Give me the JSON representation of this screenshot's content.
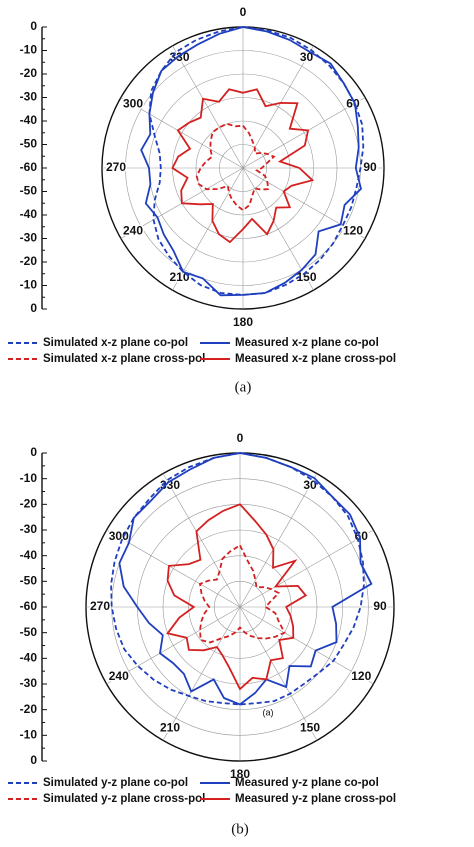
{
  "chart_data": [
    {
      "type": "polar",
      "caption": "(a)",
      "theta": [
        0,
        10,
        20,
        30,
        40,
        50,
        60,
        70,
        80,
        90,
        100,
        110,
        120,
        130,
        140,
        150,
        160,
        170,
        180,
        190,
        200,
        210,
        220,
        230,
        240,
        250,
        260,
        270,
        280,
        290,
        300,
        310,
        320,
        330,
        340,
        350
      ],
      "thetaticks": [
        0,
        30,
        60,
        90,
        120,
        150,
        180,
        210,
        240,
        270,
        300,
        330
      ],
      "rlim": [
        -60,
        0
      ],
      "rticks": [
        -60,
        -50,
        -40,
        -30,
        -20,
        -10,
        0
      ],
      "grid": true,
      "series": [
        {
          "name": "Simulated x-z plane co-pol",
          "color": "#1f3fbf",
          "line_style": "dashed",
          "values": [
            0,
            -0.5,
            -1,
            -2,
            -3,
            -4,
            -5,
            -6,
            -8,
            -10,
            -11,
            -11,
            -11,
            -10,
            -9,
            -8,
            -7,
            -6,
            -6,
            -6,
            -7,
            -9,
            -11,
            -13,
            -16,
            -20,
            -24,
            -25,
            -24,
            -20,
            -14,
            -9,
            -6,
            -3,
            -2,
            -1
          ]
        },
        {
          "name": "Measured x-z plane co-pol",
          "color": "#1f3fbf",
          "line_style": "solid",
          "values": [
            0,
            -1,
            -2,
            -3,
            -2,
            -4,
            -5,
            -8,
            -10,
            -12,
            -9,
            -14,
            -12,
            -18,
            -12,
            -10,
            -8,
            -6,
            -6,
            -5,
            -10,
            -9,
            -14,
            -16,
            -18,
            -16,
            -20,
            -20,
            -16,
            -18,
            -14,
            -10,
            -6,
            -5,
            -4,
            -2
          ]
        },
        {
          "name": "Simulated x-z plane cross-pol",
          "color": "#d42020",
          "line_style": "dashed",
          "values": [
            -42,
            -45,
            -48,
            -50,
            -52,
            -50,
            -48,
            -46,
            -50,
            -52,
            -54,
            -50,
            -48,
            -46,
            -48,
            -50,
            -48,
            -44,
            -42,
            -44,
            -46,
            -48,
            -50,
            -46,
            -42,
            -40,
            -40,
            -42,
            -44,
            -46,
            -44,
            -42,
            -40,
            -40,
            -40,
            -42
          ]
        },
        {
          "name": "Measured x-z  plane cross-pol",
          "color": "#d42020",
          "line_style": "solid",
          "values": [
            -28,
            -26,
            -32,
            -28,
            -24,
            -34,
            -28,
            -32,
            -44,
            -36,
            -30,
            -38,
            -40,
            -34,
            -38,
            -34,
            -30,
            -38,
            -34,
            -28,
            -30,
            -34,
            -40,
            -36,
            -30,
            -32,
            -36,
            -30,
            -32,
            -36,
            -28,
            -30,
            -32,
            -26,
            -30,
            -26
          ]
        }
      ]
    },
    {
      "type": "polar",
      "caption": "(b)",
      "annotation": "(a)",
      "theta": [
        0,
        10,
        20,
        30,
        40,
        50,
        60,
        70,
        80,
        90,
        100,
        110,
        120,
        130,
        140,
        150,
        160,
        170,
        180,
        190,
        200,
        210,
        220,
        230,
        240,
        250,
        260,
        270,
        280,
        290,
        300,
        310,
        320,
        330,
        340,
        350
      ],
      "thetaticks": [
        0,
        30,
        60,
        90,
        120,
        150,
        180,
        210,
        240,
        270,
        300,
        330
      ],
      "rlim": [
        -60,
        0
      ],
      "rticks": [
        -60,
        -50,
        -40,
        -30,
        -20,
        -10,
        0
      ],
      "grid": true,
      "series": [
        {
          "name": "Simulated  y-z plane co-pol",
          "color": "#1f3fbf",
          "line_style": "dashed",
          "values": [
            0,
            -1,
            -2,
            -3,
            -4,
            -5,
            -7,
            -9,
            -11,
            -13,
            -15,
            -17,
            -18,
            -20,
            -21,
            -21,
            -21,
            -22,
            -22,
            -22,
            -21,
            -20,
            -18,
            -16,
            -14,
            -12,
            -11,
            -10,
            -9,
            -8,
            -7,
            -6,
            -5,
            -3,
            -2,
            -1
          ]
        },
        {
          "name": "Measured y-z plane co-pol",
          "color": "#1f3fbf",
          "line_style": "solid",
          "values": [
            0,
            -1,
            -2,
            -2,
            -4,
            -4,
            -6,
            -10,
            -8,
            -24,
            -22,
            -20,
            -26,
            -24,
            -30,
            -24,
            -30,
            -26,
            -22,
            -24,
            -30,
            -22,
            -26,
            -26,
            -24,
            -28,
            -24,
            -20,
            -14,
            -10,
            -10,
            -6,
            -6,
            -4,
            -3,
            -1
          ]
        },
        {
          "name": "Simulated y-z plane cross-pol",
          "color": "#d42020",
          "line_style": "dashed",
          "values": [
            -36,
            -42,
            -45,
            -48,
            -50,
            -48,
            -46,
            -44,
            -48,
            -50,
            -46,
            -44,
            -40,
            -42,
            -44,
            -46,
            -48,
            -50,
            -52,
            -50,
            -48,
            -46,
            -42,
            -40,
            -42,
            -44,
            -46,
            -48,
            -46,
            -44,
            -42,
            -44,
            -46,
            -44,
            -40,
            -38
          ]
        },
        {
          "name": "Measured y-z plane cross-pol",
          "color": "#d42020",
          "line_style": "solid",
          "values": [
            -20,
            -26,
            -30,
            -34,
            -40,
            -32,
            -44,
            -36,
            -34,
            -42,
            -40,
            -38,
            -36,
            -40,
            -34,
            -36,
            -30,
            -32,
            -28,
            -36,
            -40,
            -42,
            -38,
            -34,
            -36,
            -30,
            -36,
            -42,
            -34,
            -30,
            -28,
            -34,
            -36,
            -26,
            -24,
            -22
          ]
        }
      ]
    }
  ]
}
